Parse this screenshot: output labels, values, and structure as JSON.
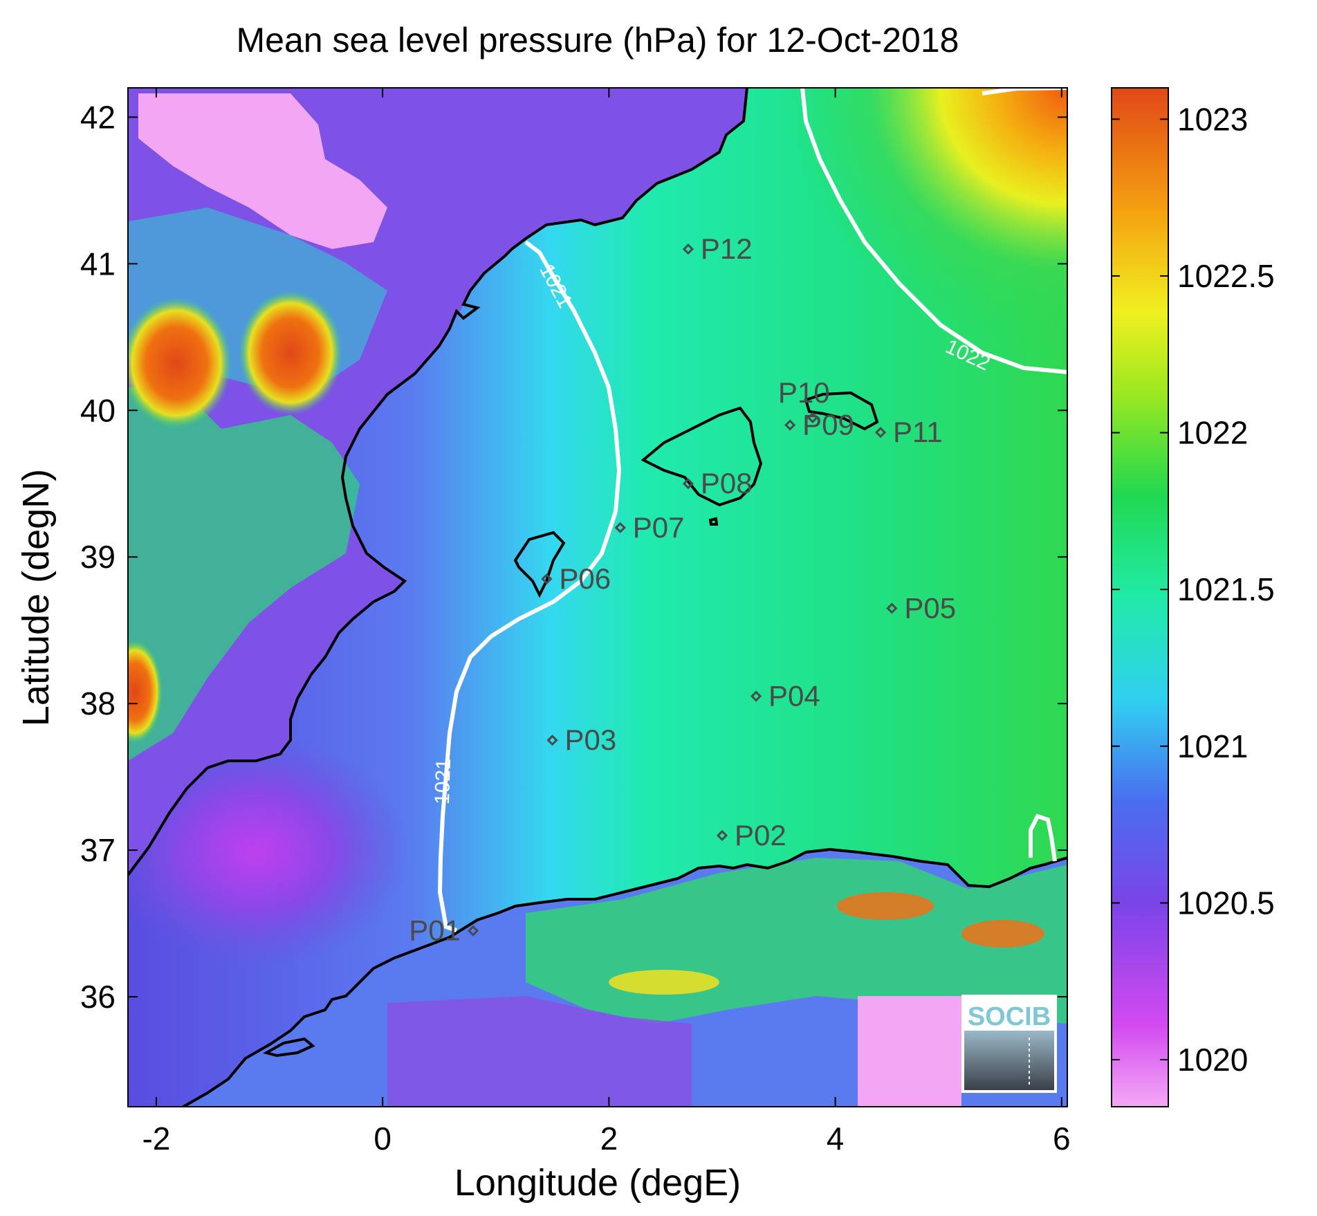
{
  "title": "Mean sea level pressure (hPa) for 12-Oct-2018",
  "xlabel": "Longitude (degE)",
  "ylabel": "Latitude (degN)",
  "x_ticks": [
    "-2",
    "0",
    "2",
    "4",
    "6"
  ],
  "y_ticks": [
    "36",
    "37",
    "38",
    "39",
    "40",
    "41",
    "42"
  ],
  "colorbar": {
    "ticks": [
      "1020",
      "1020.5",
      "1021",
      "1021.5",
      "1022",
      "1022.5",
      "1023"
    ]
  },
  "logo_text": "SOCIB",
  "contours": [
    {
      "value": "1021",
      "label_a": "1021",
      "label_b": "1021"
    },
    {
      "value": "1022",
      "label_a": "1022"
    }
  ],
  "stations": [
    {
      "id": "P01",
      "lon": 0.8,
      "lat": 36.45
    },
    {
      "id": "P02",
      "lon": 3.0,
      "lat": 37.1
    },
    {
      "id": "P03",
      "lon": 1.5,
      "lat": 37.75
    },
    {
      "id": "P04",
      "lon": 3.3,
      "lat": 38.05
    },
    {
      "id": "P05",
      "lon": 4.5,
      "lat": 38.65
    },
    {
      "id": "P06",
      "lon": 1.45,
      "lat": 38.85
    },
    {
      "id": "P07",
      "lon": 2.1,
      "lat": 39.2
    },
    {
      "id": "P08",
      "lon": 2.7,
      "lat": 39.5
    },
    {
      "id": "P09",
      "lon": 3.6,
      "lat": 39.9
    },
    {
      "id": "P10",
      "lon": 3.8,
      "lat": 39.95
    },
    {
      "id": "P11",
      "lon": 4.4,
      "lat": 39.85
    },
    {
      "id": "P12",
      "lon": 2.7,
      "lat": 41.1
    }
  ],
  "colors": {
    "land_low": "#9b5ff0",
    "sea_low": "#6a55e0",
    "sea_mid": "#22e6b0",
    "sea_high": "#f5ef20",
    "peak": "#f05a10",
    "contour": "#ffffff",
    "coast": "#000000"
  }
}
